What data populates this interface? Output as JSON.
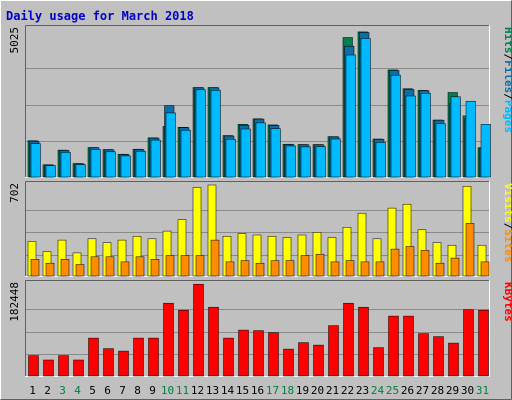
{
  "chart_data": {
    "type": "bar",
    "title": "Daily usage for March 2018",
    "categories": [
      "1",
      "2",
      "3",
      "4",
      "5",
      "6",
      "7",
      "8",
      "9",
      "10",
      "11",
      "12",
      "13",
      "14",
      "15",
      "16",
      "17",
      "18",
      "19",
      "20",
      "21",
      "22",
      "23",
      "24",
      "25",
      "26",
      "27",
      "28",
      "29",
      "30",
      "31"
    ],
    "weekend_days": [
      "3",
      "4",
      "10",
      "11",
      "17",
      "18",
      "24",
      "25",
      "31"
    ],
    "colors": {
      "background": "#c0c0c0",
      "plot_area": "#c0c0c0",
      "title": "#0000cc",
      "weekday_label": "#000000",
      "weekend_label": "#008040",
      "hits": "#007f4f",
      "files": "#0b6ea8",
      "pages": "#00baff",
      "visits": "#ffff00",
      "sites": "#ff8c00",
      "kbytes": "#ff0000"
    },
    "panels": [
      {
        "id": "hits-files-pages",
        "max_label": "5025",
        "ymax": 5025,
        "legend": [
          {
            "text": "Pages",
            "color": "#00baff"
          },
          {
            "text": "Files",
            "color": "#0b6ea8"
          },
          {
            "text": "Hits",
            "color": "#007f4f"
          }
        ],
        "series": [
          {
            "name": "Hits",
            "values": [
              1240,
              420,
              920,
              460,
              1010,
              940,
              780,
              950,
              1340,
              1730,
              1700,
              3060,
              3060,
              1420,
              1800,
              1990,
              1780,
              1120,
              1110,
              1110,
              1380,
              4770,
              4960,
              1300,
              3660,
              3020,
              2960,
              1950,
              2890,
              2090,
              1000
            ]
          },
          {
            "name": "Files",
            "values": [
              1220,
              410,
              910,
              450,
              1000,
              930,
              770,
              940,
              1330,
              2440,
              1690,
              3050,
              3050,
              1400,
              1770,
              1980,
              1760,
              1110,
              1100,
              1100,
              1370,
              4470,
              4940,
              1290,
              3640,
              2990,
              2950,
              1940,
              2500,
              1990,
              990
            ]
          },
          {
            "name": "Pages",
            "values": [
              1140,
              390,
              840,
              420,
              940,
              860,
              720,
              880,
              1260,
              2190,
              1600,
              2980,
              2960,
              1290,
              1640,
              1850,
              1650,
              1060,
              1030,
              1040,
              1300,
              4170,
              4730,
              1180,
              3480,
              2770,
              2860,
              1820,
              2740,
              2590,
              1800
            ]
          }
        ]
      },
      {
        "id": "visits-sites",
        "max_label": "702",
        "ymax": 702,
        "legend": [
          {
            "text": "Sites",
            "color": "#ff8c00"
          },
          {
            "text": "Visits",
            "color": "#ffff00"
          }
        ],
        "series": [
          {
            "name": "Visits",
            "values": [
              270,
              190,
              280,
              180,
              290,
              260,
              280,
              310,
              290,
              350,
              440,
              690,
              710,
              310,
              330,
              320,
              310,
              300,
              320,
              340,
              300,
              380,
              490,
              290,
              530,
              560,
              360,
              260,
              240,
              700,
              240
            ]
          },
          {
            "name": "Sites",
            "values": [
              130,
              100,
              130,
              90,
              150,
              150,
              110,
              150,
              130,
              160,
              160,
              160,
              280,
              110,
              120,
              100,
              120,
              120,
              160,
              170,
              110,
              120,
              110,
              110,
              210,
              230,
              200,
              100,
              140,
              410,
              110
            ]
          }
        ]
      },
      {
        "id": "kbytes",
        "max_label": "182448",
        "ymax": 182448,
        "legend": [
          {
            "text": "KBytes",
            "color": "#ff0000"
          }
        ],
        "series": [
          {
            "name": "KBytes",
            "values": [
              41000,
              32000,
              41000,
              32000,
              76000,
              55000,
              50000,
              76000,
              76000,
              146000,
              132000,
              184000,
              138000,
              76000,
              92000,
              91000,
              87000,
              54000,
              67000,
              62000,
              101000,
              146000,
              138000,
              57000,
              120000,
              120000,
              85000,
              79000,
              66000,
              133000,
              132000
            ]
          }
        ]
      }
    ]
  }
}
